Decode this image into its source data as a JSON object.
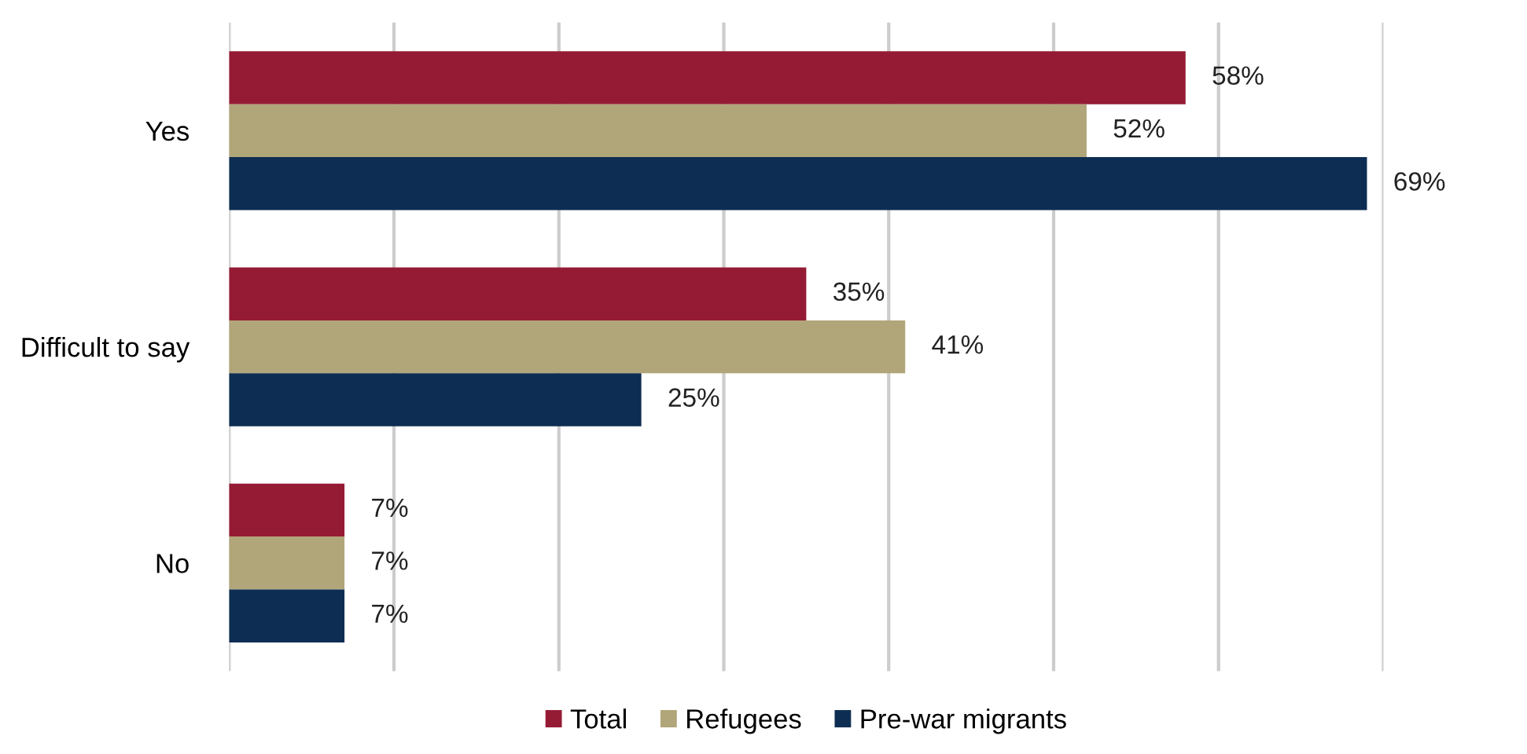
{
  "chart_data": {
    "type": "bar",
    "orientation": "horizontal",
    "categories": [
      "Yes",
      "Difficult to say",
      "No"
    ],
    "series": [
      {
        "name": "Total",
        "color": "#951b35",
        "values": [
          58,
          35,
          7
        ],
        "value_labels": [
          "58%",
          "35%",
          "7%"
        ]
      },
      {
        "name": "Refugees",
        "color": "#b1a67a",
        "values": [
          52,
          41,
          7
        ],
        "value_labels": [
          "52%",
          "41%",
          "7%"
        ]
      },
      {
        "name": "Pre-war migrants",
        "color": "#0e2d52",
        "values": [
          69,
          25,
          7
        ],
        "value_labels": [
          "69%",
          "25%",
          "7%"
        ]
      }
    ],
    "xlim": [
      0,
      70
    ],
    "xticks": [
      {
        "value": 0,
        "label": null
      },
      {
        "value": 10,
        "label": null
      },
      {
        "value": 20,
        "label": null
      },
      {
        "value": 30,
        "label": null
      },
      {
        "value": 40,
        "label": null
      },
      {
        "value": 50,
        "label": null
      },
      {
        "value": 60,
        "label": null
      },
      {
        "value": 70,
        "label": null
      }
    ],
    "tick_labels": "y",
    "grid": "x",
    "legend": "bottom"
  }
}
